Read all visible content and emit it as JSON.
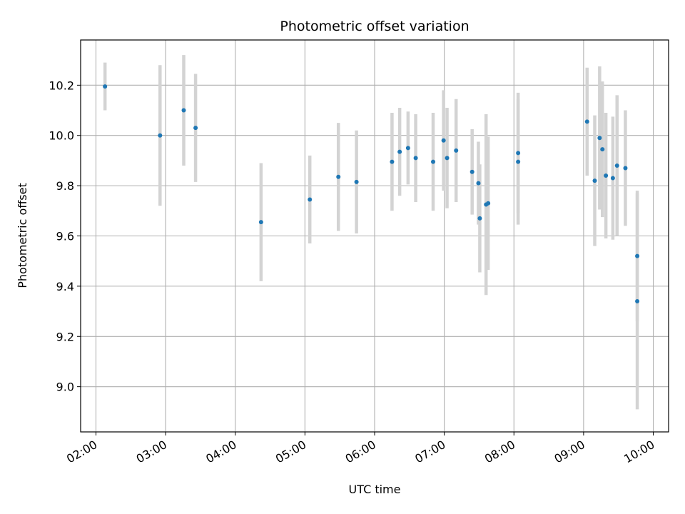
{
  "chart_data": {
    "type": "scatter",
    "title": "Photometric offset variation",
    "xlabel": "UTC time",
    "ylabel": "Photometric offset",
    "x_unit": "hours UTC",
    "xlim": [
      1.78,
      10.22
    ],
    "ylim": [
      8.82,
      10.38
    ],
    "x_ticks": [
      2,
      3,
      4,
      5,
      6,
      7,
      8,
      9,
      10
    ],
    "x_tick_labels": [
      "02:00",
      "03:00",
      "04:00",
      "05:00",
      "06:00",
      "07:00",
      "08:00",
      "09:00",
      "10:00"
    ],
    "y_ticks": [
      9.0,
      9.2,
      9.4,
      9.6,
      9.8,
      10.0,
      10.2
    ],
    "y_tick_labels": [
      "9.0",
      "9.2",
      "9.4",
      "9.6",
      "9.8",
      "10.0",
      "10.2"
    ],
    "grid": true,
    "point_color": "#1f77b4",
    "errorbar_color": "#d3d3d3",
    "points": [
      {
        "x": 2.13,
        "y": 10.195,
        "err": 0.095
      },
      {
        "x": 2.92,
        "y": 10.0,
        "err": 0.28
      },
      {
        "x": 3.26,
        "y": 10.1,
        "err": 0.22
      },
      {
        "x": 3.43,
        "y": 10.03,
        "err": 0.215
      },
      {
        "x": 4.37,
        "y": 9.655,
        "err": 0.235
      },
      {
        "x": 5.07,
        "y": 9.745,
        "err": 0.175
      },
      {
        "x": 5.48,
        "y": 9.835,
        "err": 0.215
      },
      {
        "x": 5.74,
        "y": 9.815,
        "err": 0.205
      },
      {
        "x": 6.25,
        "y": 9.895,
        "err": 0.195
      },
      {
        "x": 6.36,
        "y": 9.935,
        "err": 0.175
      },
      {
        "x": 6.48,
        "y": 9.95,
        "err": 0.145
      },
      {
        "x": 6.59,
        "y": 9.91,
        "err": 0.175
      },
      {
        "x": 6.84,
        "y": 9.895,
        "err": 0.195
      },
      {
        "x": 6.99,
        "y": 9.98,
        "err": 0.2
      },
      {
        "x": 7.04,
        "y": 9.91,
        "err": 0.2
      },
      {
        "x": 7.17,
        "y": 9.94,
        "err": 0.205
      },
      {
        "x": 7.4,
        "y": 9.855,
        "err": 0.17
      },
      {
        "x": 7.49,
        "y": 9.81,
        "err": 0.165
      },
      {
        "x": 7.51,
        "y": 9.67,
        "err": 0.215
      },
      {
        "x": 7.6,
        "y": 9.725,
        "err": 0.36
      },
      {
        "x": 7.63,
        "y": 9.73,
        "err": 0.265
      },
      {
        "x": 8.06,
        "y": 9.93,
        "err": 0.24
      },
      {
        "x": 8.06,
        "y": 9.895,
        "err": 0.25
      },
      {
        "x": 9.05,
        "y": 10.055,
        "err": 0.215
      },
      {
        "x": 9.16,
        "y": 9.82,
        "err": 0.26
      },
      {
        "x": 9.23,
        "y": 9.99,
        "err": 0.285
      },
      {
        "x": 9.27,
        "y": 9.945,
        "err": 0.27
      },
      {
        "x": 9.32,
        "y": 9.84,
        "err": 0.25
      },
      {
        "x": 9.42,
        "y": 9.83,
        "err": 0.245
      },
      {
        "x": 9.48,
        "y": 9.88,
        "err": 0.28
      },
      {
        "x": 9.6,
        "y": 9.87,
        "err": 0.23
      },
      {
        "x": 9.77,
        "y": 9.52,
        "err": 0.26
      },
      {
        "x": 9.77,
        "y": 9.34,
        "err": 0.43
      }
    ]
  }
}
